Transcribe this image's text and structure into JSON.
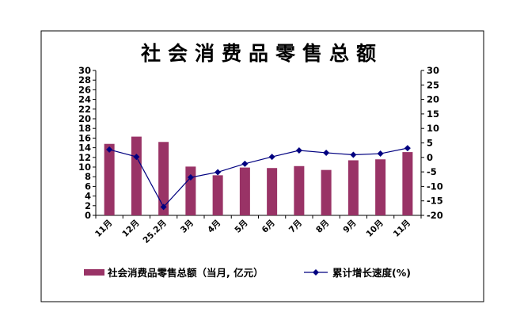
{
  "chart_data": {
    "type": "bar",
    "title": "社会消费品零售总额",
    "categories": [
      "11月",
      "12月",
      "25.2月",
      "3月",
      "4月",
      "5月",
      "6月",
      "7月",
      "8月",
      "9月",
      "10月",
      "11月"
    ],
    "series": [
      {
        "name": "社会消费品零售总额（当月, 亿元）",
        "chart_type": "bar",
        "axis": "left",
        "color": "#993366",
        "values": [
          14.8,
          16.3,
          15.2,
          10.1,
          8.3,
          9.9,
          9.8,
          10.2,
          9.4,
          11.4,
          11.6,
          13.1
        ]
      },
      {
        "name": "累计增长速度(%)",
        "chart_type": "line",
        "axis": "right",
        "color": "#000080",
        "marker": "diamond",
        "values": [
          2.7,
          0.2,
          -17.1,
          -6.9,
          -5.1,
          -2.2,
          0.2,
          2.4,
          1.6,
          0.9,
          1.3,
          3.2
        ]
      }
    ],
    "y_left": {
      "ylim": [
        0,
        30
      ],
      "ticks": [
        "0",
        "2",
        "4",
        "6",
        "8",
        "10",
        "12",
        "14",
        "16",
        "18",
        "20",
        "22",
        "24",
        "26",
        "28",
        "30"
      ]
    },
    "y_right": {
      "ylim": [
        -20,
        30
      ],
      "ticks": [
        "-20",
        "-15",
        "-10",
        "-5",
        "0",
        "5",
        "10",
        "15",
        "20",
        "25",
        "30"
      ]
    },
    "grid": false,
    "legend_position": "bottom"
  }
}
